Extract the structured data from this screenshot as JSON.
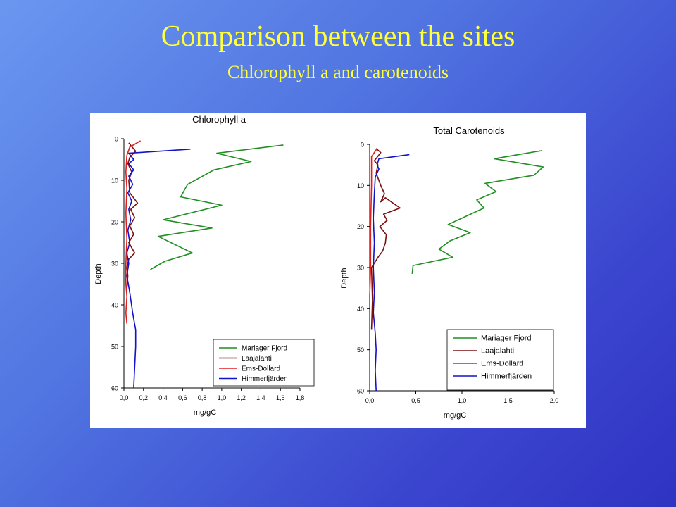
{
  "slide": {
    "title": "Comparison between the sites",
    "subtitle": "Chlorophyll a and carotenoids"
  },
  "chart_data": [
    {
      "type": "line",
      "title": "Chlorophyll a",
      "xlabel": "mg/gC",
      "ylabel": "Depth",
      "xlim": [
        0,
        1.8
      ],
      "ylim": [
        0,
        60
      ],
      "y_inverted": true,
      "x_ticks": [
        "0,0",
        "0,2",
        "0,4",
        "0,6",
        "0,8",
        "1,0",
        "1,2",
        "1,4",
        "1,6",
        "1,8"
      ],
      "y_ticks": [
        "0",
        "10",
        "20",
        "30",
        "40",
        "50",
        "60"
      ],
      "legend_position": "bottom-right",
      "series": [
        {
          "name": "Mariager Fjord",
          "color": "#1f8f1f",
          "x": [
            1.63,
            0.95,
            1.3,
            0.92,
            0.65,
            0.58,
            1.0,
            0.4,
            0.9,
            0.35,
            0.7,
            0.42,
            0.27
          ],
          "y": [
            1.5,
            3.5,
            5.5,
            7.5,
            11,
            14,
            16,
            19.5,
            21.5,
            23.5,
            27.5,
            29.5,
            31.5
          ]
        },
        {
          "name": "Laajalahti",
          "color": "#7a1010",
          "x": [
            0.05,
            0.12,
            0.06,
            0.04,
            0.08,
            0.05,
            0.06,
            0.14,
            0.07,
            0.11,
            0.06,
            0.1,
            0.05,
            0.11,
            0.05,
            0.03,
            0.04,
            0.03
          ],
          "y": [
            1,
            3,
            4.5,
            6,
            8,
            10,
            13,
            15.5,
            17,
            19,
            21,
            23,
            25,
            27.5,
            29,
            31,
            33,
            36
          ]
        },
        {
          "name": "Ems-Dollard",
          "color": "#e01e1e",
          "x": [
            0.17,
            0.06,
            0.03,
            0.02,
            0.03,
            0.02,
            0.03,
            0.02,
            0.02,
            0.03,
            0.02,
            0.03
          ],
          "y": [
            0.5,
            2,
            4,
            8,
            12,
            18,
            24,
            30,
            35,
            38,
            42,
            44.5
          ]
        },
        {
          "name": "Himmerfjärden",
          "color": "#1212c8",
          "x": [
            0.68,
            0.05,
            0.1,
            0.05,
            0.1,
            0.05,
            0.09,
            0.04,
            0.08,
            0.05,
            0.07,
            0.04,
            0.06,
            0.03,
            0.05,
            0.03,
            0.06,
            0.09,
            0.12,
            0.12,
            0.11,
            0.1
          ],
          "y": [
            2.5,
            3.5,
            5,
            6,
            7.5,
            9,
            11,
            13,
            15,
            17,
            19.5,
            22,
            25,
            27.5,
            30,
            33,
            37,
            42,
            46,
            50,
            55,
            60
          ]
        }
      ]
    },
    {
      "type": "line",
      "title": "Total Carotenoids",
      "xlabel": "mg/gC",
      "ylabel": "Depth",
      "xlim": [
        0,
        2.0
      ],
      "ylim": [
        0,
        60
      ],
      "y_inverted": true,
      "x_ticks": [
        "0,0",
        "0,5",
        "1,0",
        "1,5",
        "2,0"
      ],
      "y_ticks": [
        "0",
        "10",
        "20",
        "30",
        "40",
        "50",
        "60"
      ],
      "legend_position": "bottom-right",
      "series": [
        {
          "name": "Mariager Fjord",
          "color": "#1f8f1f",
          "x": [
            1.87,
            1.35,
            1.88,
            1.78,
            1.25,
            1.37,
            1.16,
            1.24,
            0.85,
            1.09,
            0.87,
            0.75,
            0.9,
            0.47,
            0.46
          ],
          "y": [
            1.5,
            3.5,
            5.5,
            7.5,
            9.5,
            11.5,
            13.5,
            15.5,
            19.5,
            21.5,
            23.5,
            25.5,
            27.5,
            29.5,
            31.5
          ]
        },
        {
          "name": "Laajalahti",
          "color": "#7a1010",
          "x": [
            0.07,
            0.12,
            0.05,
            0.09,
            0.07,
            0.12,
            0.16,
            0.12,
            0.17,
            0.33,
            0.15,
            0.19,
            0.11,
            0.18,
            0.17,
            0.14,
            0.09,
            0.02,
            0.03,
            0.02
          ],
          "y": [
            1,
            2,
            4,
            5,
            7,
            10,
            12,
            14,
            13,
            15.5,
            17,
            18.5,
            20,
            22,
            24,
            26,
            27.5,
            30,
            38,
            45
          ]
        },
        {
          "name": "Ems-Dollard",
          "color": "#e01e1e",
          "x": [
            0.08,
            0.02,
            0.02,
            0.01,
            0.01,
            0.0
          ],
          "y": [
            1,
            3,
            10,
            20,
            30,
            37
          ]
        },
        {
          "name": "Himmerfjärden",
          "color": "#1212c8",
          "x": [
            0.43,
            0.1,
            0.08,
            0.1,
            0.06,
            0.05,
            0.04,
            0.05,
            0.04,
            0.05,
            0.04,
            0.06,
            0.07,
            0.06,
            0.07
          ],
          "y": [
            2.5,
            3.5,
            5,
            6,
            8,
            12,
            18,
            24,
            30,
            36,
            41,
            46,
            50,
            55,
            60
          ]
        }
      ]
    }
  ]
}
